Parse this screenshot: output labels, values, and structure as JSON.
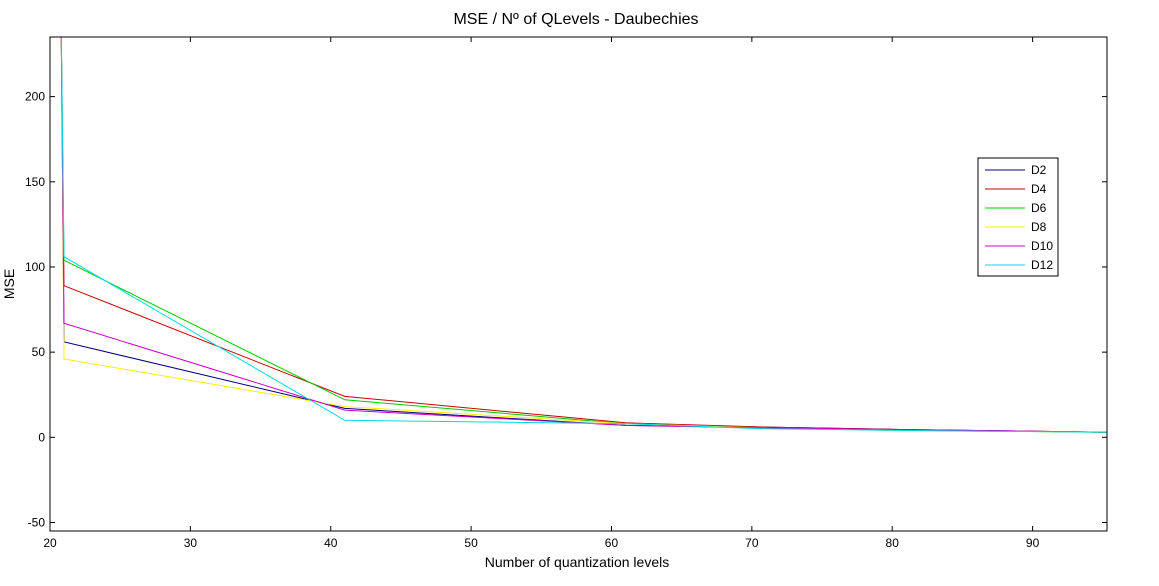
{
  "chart_data": {
    "type": "line",
    "title": "MSE / Nº of QLevels - Daubechies",
    "xlabel": "Number of quantization levels",
    "ylabel": "MSE",
    "xlim": [
      20,
      95.3
    ],
    "ylim": [
      -55,
      235
    ],
    "xticks": [
      20,
      30,
      40,
      50,
      60,
      70,
      80,
      90
    ],
    "yticks": [
      -50,
      0,
      50,
      100,
      150,
      200
    ],
    "grid": false,
    "legend_position": "right, upper-middle",
    "series": [
      {
        "name": "D2",
        "color": "#00007f",
        "points": [
          [
            20.8,
            240
          ],
          [
            21,
            56
          ],
          [
            41,
            17
          ],
          [
            61,
            7
          ],
          [
            71,
            6
          ],
          [
            81,
            4.5
          ],
          [
            95.3,
            3
          ]
        ]
      },
      {
        "name": "D4",
        "color": "#cc0000",
        "points": [
          [
            20.8,
            240
          ],
          [
            21,
            89
          ],
          [
            41,
            24
          ],
          [
            61,
            8.5
          ],
          [
            71,
            6
          ],
          [
            81,
            4.5
          ],
          [
            95.3,
            3
          ]
        ]
      },
      {
        "name": "D6",
        "color": "#00cc00",
        "points": [
          [
            20.8,
            240
          ],
          [
            21,
            104
          ],
          [
            41,
            22
          ],
          [
            61,
            8
          ],
          [
            71,
            5.5
          ],
          [
            81,
            4
          ],
          [
            95.3,
            3
          ]
        ]
      },
      {
        "name": "D8",
        "color": "#ffee00",
        "points": [
          [
            20.8,
            240
          ],
          [
            21,
            46
          ],
          [
            41,
            18
          ],
          [
            61,
            8
          ],
          [
            71,
            5.5
          ],
          [
            81,
            4
          ],
          [
            95.3,
            3
          ]
        ]
      },
      {
        "name": "D10",
        "color": "#cc00cc",
        "points": [
          [
            20.8,
            240
          ],
          [
            21,
            67
          ],
          [
            41,
            16
          ],
          [
            61,
            7
          ],
          [
            71,
            5.5
          ],
          [
            81,
            4.5
          ],
          [
            95.3,
            3
          ]
        ]
      },
      {
        "name": "D12",
        "color": "#00dddd",
        "points": [
          [
            20.8,
            240
          ],
          [
            21,
            106
          ],
          [
            41,
            10
          ],
          [
            61,
            8
          ],
          [
            71,
            5
          ],
          [
            81,
            4
          ],
          [
            95.3,
            3
          ]
        ]
      }
    ]
  }
}
